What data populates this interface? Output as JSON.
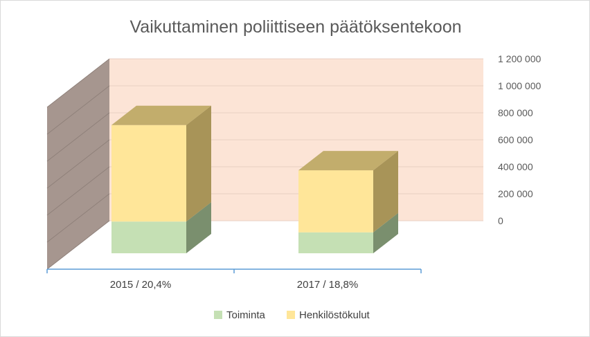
{
  "chart_data": {
    "type": "bar",
    "stacked": true,
    "three_d": true,
    "title": "Vaikuttaminen poliittiseen päätöksentekoon",
    "categories": [
      "2015 / 20,4%",
      "2017 / 18,8%"
    ],
    "series": [
      {
        "name": "Toiminta",
        "values": [
          235000,
          155000
        ],
        "color": "#C5E0B4",
        "side_color": "#7A8F6E"
      },
      {
        "name": "Henkilöstökulut",
        "values": [
          715000,
          460000
        ],
        "color": "#FFE699",
        "side_color": "#A89458",
        "top_color": "#C2AD6C"
      }
    ],
    "ylim": [
      0,
      1200000
    ],
    "yticks": [
      "0",
      "200 000",
      "400 000",
      "600 000",
      "800 000",
      "1 000 000",
      "1 200 000"
    ],
    "grid": true,
    "legend_position": "bottom",
    "colors": {
      "back_wall": "#FCE4D6",
      "side_wall": "#A6968F",
      "floor_axis": "#5B9BD5",
      "gridline": "#e9cfc3"
    }
  }
}
